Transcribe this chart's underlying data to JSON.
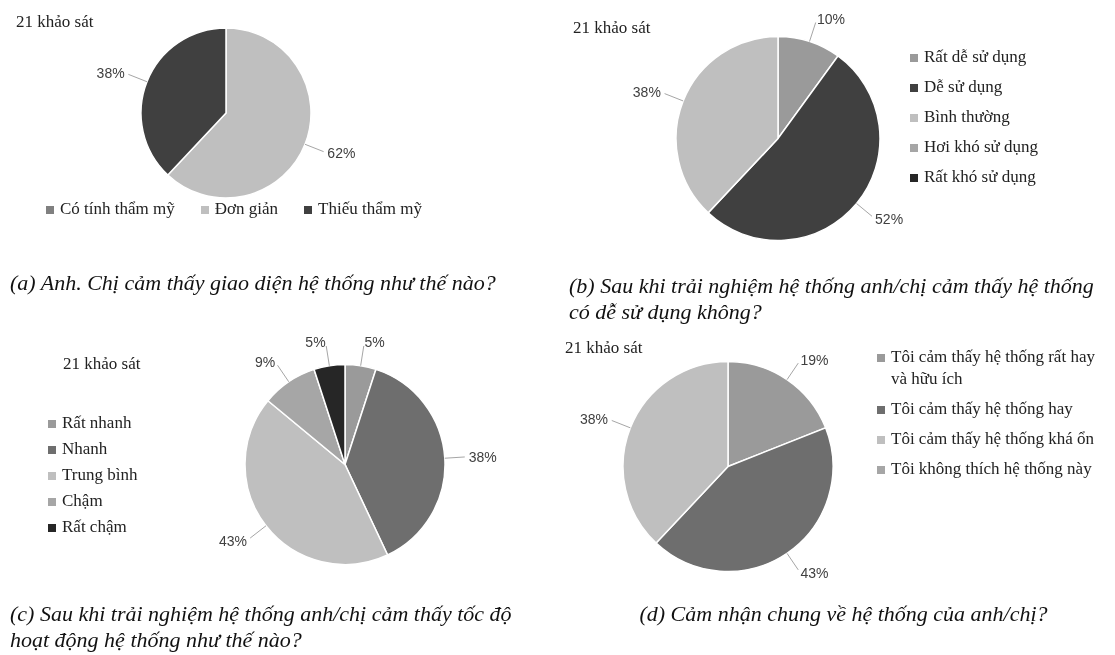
{
  "chart_data": [
    {
      "type": "pie",
      "title": "(a) Anh. Chị cảm thấy giao diện hệ thống như thế nào?",
      "subtitle": "21 khảo sát",
      "categories": [
        "Có tính thẩm mỹ",
        "Đơn giản",
        "Thiếu thẩm mỹ"
      ],
      "values": [
        0,
        62,
        38
      ],
      "value_labels": [
        null,
        "62%",
        "38%"
      ],
      "colors": [
        "#808080",
        "#bfbfbf",
        "#404040"
      ],
      "legend": "bottom"
    },
    {
      "type": "pie",
      "title": "(b) Sau khi trải nghiệm hệ thống anh/chị cảm thấy hệ thống có dễ sử dụng không?",
      "subtitle": "21 khảo sát",
      "categories": [
        "Rất dễ sử dụng",
        "Dễ sử dụng",
        "Bình thường",
        "Hơi khó sử dụng",
        "Rất khó sử dụng"
      ],
      "values": [
        10,
        52,
        38,
        0,
        0
      ],
      "value_labels": [
        "10%",
        "52%",
        "38%",
        null,
        null
      ],
      "colors": [
        "#9a9a9a",
        "#404040",
        "#bfbfbf",
        "#a6a6a6",
        "#262626"
      ],
      "legend": "right"
    },
    {
      "type": "pie",
      "title": "(c) Sau khi trải nghiệm hệ thống anh/chị cảm thấy tốc độ hoạt động hệ thống như thế nào?",
      "subtitle": "21 khảo sát",
      "categories": [
        "Rất nhanh",
        "Nhanh",
        "Trung bình",
        "Chậm",
        "Rất chậm"
      ],
      "values": [
        5,
        38,
        43,
        9,
        5
      ],
      "value_labels": [
        "5%",
        "38%",
        "43%",
        "9%",
        "5%"
      ],
      "colors": [
        "#9a9a9a",
        "#6e6e6e",
        "#bfbfbf",
        "#a6a6a6",
        "#262626"
      ],
      "legend": "left"
    },
    {
      "type": "pie",
      "title": "(d) Cảm nhận chung về hệ thống của anh/chị?",
      "subtitle": "21 khảo sát",
      "categories": [
        "Tôi cảm thấy hệ thống rất hay và hữu ích",
        "Tôi cảm thấy hệ thống hay",
        "Tôi cảm thấy hệ thống khá ổn",
        "Tôi không thích hệ thống này"
      ],
      "values": [
        19,
        43,
        38,
        0
      ],
      "value_labels": [
        "19%",
        "43%",
        "38%",
        null
      ],
      "colors": [
        "#9a9a9a",
        "#6e6e6e",
        "#bfbfbf",
        "#a6a6a6"
      ],
      "legend": "right"
    }
  ]
}
